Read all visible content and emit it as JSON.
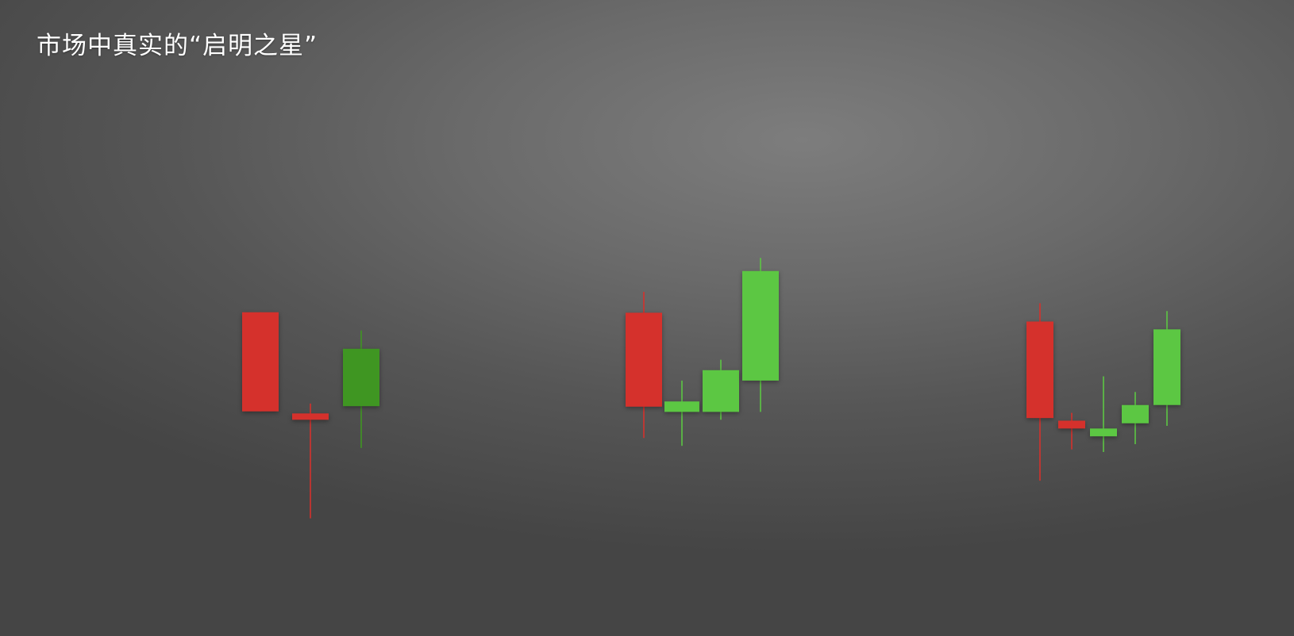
{
  "title": "市场中真实的“启明之星”",
  "colors": {
    "bearish": "#d5312c",
    "bullish": "#5cc743",
    "bullish_dark": "#3f9622",
    "background": "#666666",
    "title": "#ffffff"
  },
  "chart_data": [
    {
      "type": "candlestick",
      "title": "",
      "xlabel": "",
      "ylabel": "",
      "ylim": [
        0,
        100
      ],
      "grid": false,
      "candles": [
        {
          "open": 94,
          "high": 94,
          "low": 56,
          "close": 56,
          "color": "bearish"
        },
        {
          "open": 55,
          "high": 59,
          "low": 15,
          "close": 53,
          "color": "bearish"
        },
        {
          "open": 58,
          "high": 87,
          "low": 42,
          "close": 80,
          "color": "bullish_dark"
        }
      ]
    },
    {
      "type": "candlestick",
      "title": "",
      "xlabel": "",
      "ylabel": "",
      "ylim": [
        0,
        100
      ],
      "grid": false,
      "candles": [
        {
          "open": 78,
          "high": 86,
          "low": 30,
          "close": 42,
          "color": "bearish"
        },
        {
          "open": 40,
          "high": 52,
          "low": 27,
          "close": 44,
          "color": "bullish"
        },
        {
          "open": 40,
          "high": 60,
          "low": 37,
          "close": 56,
          "color": "bullish"
        },
        {
          "open": 52,
          "high": 99,
          "low": 40,
          "close": 94,
          "color": "bullish"
        }
      ]
    },
    {
      "type": "candlestick",
      "title": "",
      "xlabel": "",
      "ylabel": "",
      "ylim": [
        0,
        100
      ],
      "grid": false,
      "candles": [
        {
          "open": 95,
          "high": 102,
          "low": 34,
          "close": 58,
          "color": "bearish"
        },
        {
          "open": 57,
          "high": 60,
          "low": 46,
          "close": 54,
          "color": "bearish"
        },
        {
          "open": 51,
          "high": 74,
          "low": 45,
          "close": 54,
          "color": "bullish"
        },
        {
          "open": 56,
          "high": 68,
          "low": 48,
          "close": 63,
          "color": "bullish"
        },
        {
          "open": 63,
          "high": 99,
          "low": 55,
          "close": 92,
          "color": "bullish"
        }
      ]
    }
  ]
}
